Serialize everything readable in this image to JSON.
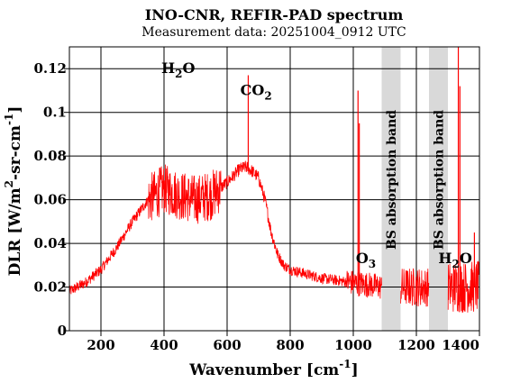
{
  "chart_data": {
    "type": "line",
    "title": "INO-CNR, REFIR-PAD spectrum",
    "subtitle": "Measurement data: 20251004_0912 UTC",
    "xlabel": {
      "main": "Wavenumber [cm",
      "sup": "-1",
      "tail": "]"
    },
    "ylabel": {
      "p1": "DLR [W/m",
      "sup1": "2",
      "p2": "-sr-cm",
      "sup2": "-1",
      "p3": "]"
    },
    "xlim": [
      100,
      1400
    ],
    "ylim": [
      0,
      0.13
    ],
    "xticks": [
      200,
      400,
      600,
      800,
      1000,
      1200,
      1400
    ],
    "xtick_labels": [
      "200",
      "400",
      "600",
      "800",
      "1000",
      "1200",
      "1400"
    ],
    "yticks": [
      0,
      0.02,
      0.04,
      0.06,
      0.08,
      0.1,
      0.12
    ],
    "ytick_labels": [
      "0",
      "0.02",
      "0.04",
      "0.06",
      "0.08",
      "0.1",
      "0.12"
    ],
    "grid": true,
    "series_color": "#ff0000",
    "band_color": "#d9d9d9",
    "bands": [
      {
        "x0": 1090,
        "x1": 1150,
        "label": "BS absorption band"
      },
      {
        "x0": 1240,
        "x1": 1300,
        "label": "BS absorption band"
      }
    ],
    "annotations": [
      {
        "base": "H",
        "sub": "2",
        "tail": "O",
        "x": 445,
        "y": 0.118
      },
      {
        "base": "CO",
        "sub": "2",
        "tail": "",
        "x": 692,
        "y": 0.108
      },
      {
        "base": "O",
        "sub": "3",
        "tail": "",
        "x": 1040,
        "y": 0.031
      },
      {
        "base": "H",
        "sub": "2",
        "tail": "O",
        "x": 1323,
        "y": 0.031
      }
    ],
    "envelope_x": [
      100,
      150,
      200,
      250,
      300,
      350,
      400,
      450,
      500,
      550,
      600,
      640,
      660,
      680,
      700,
      720,
      740,
      760,
      780,
      800,
      850,
      900,
      950,
      1000,
      1050,
      1090,
      1150,
      1200,
      1240,
      1300,
      1350,
      1400
    ],
    "envelope_y": [
      0.018,
      0.022,
      0.028,
      0.038,
      0.05,
      0.06,
      0.065,
      0.062,
      0.06,
      0.062,
      0.068,
      0.074,
      0.075,
      0.073,
      0.07,
      0.06,
      0.045,
      0.035,
      0.03,
      0.028,
      0.026,
      0.024,
      0.023,
      0.022,
      0.021,
      0.02,
      0.02,
      0.02,
      0.02,
      0.02,
      0.02,
      0.02
    ],
    "spikes": [
      {
        "x": 667,
        "y": 0.117
      },
      {
        "x": 1015,
        "y": 0.11
      },
      {
        "x": 1019,
        "y": 0.095
      },
      {
        "x": 1333,
        "y": 0.13
      },
      {
        "x": 1338,
        "y": 0.112
      },
      {
        "x": 1384,
        "y": 0.045
      }
    ]
  }
}
